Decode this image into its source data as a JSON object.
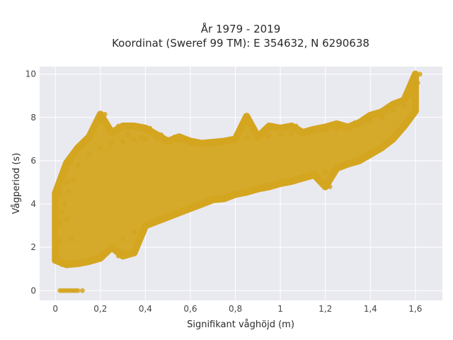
{
  "chart_data": {
    "type": "scatter",
    "title": "År 1979 - 2019",
    "subtitle": "Koordinat (Sweref 99 TM): E 354632, N 6290638",
    "xlabel": "Signifikant våghöjd (m)",
    "ylabel": "Vågperiod (s)",
    "xlim": [
      -0.07,
      1.72
    ],
    "ylim": [
      -0.45,
      10.35
    ],
    "x_ticks": [
      0,
      0.2,
      0.4,
      0.6,
      0.8,
      1.0,
      1.2,
      1.4,
      1.6
    ],
    "x_tick_labels": [
      "0",
      "0,2",
      "0,4",
      "0,6",
      "0,8",
      "1",
      "1,2",
      "1,4",
      "1,6"
    ],
    "y_ticks": [
      0,
      2,
      4,
      6,
      8,
      10
    ],
    "y_tick_labels": [
      "0",
      "2",
      "4",
      "6",
      "8",
      "10"
    ],
    "grid": true,
    "point_color": "#d4a51f",
    "background_color": "#e9e9f0",
    "series": [
      {
        "values": [
          {
            "x": 0.02,
            "y": 0.0
          },
          {
            "x": 0.03,
            "y": 0.0
          },
          {
            "x": 0.04,
            "y": 0.0
          },
          {
            "x": 0.05,
            "y": 0.0
          },
          {
            "x": 0.06,
            "y": 0.0
          },
          {
            "x": 0.07,
            "y": 0.0
          },
          {
            "x": 0.08,
            "y": 0.0
          },
          {
            "x": 0.09,
            "y": 0.0
          },
          {
            "x": 0.1,
            "y": 0.0
          },
          {
            "x": 0.12,
            "y": 0.0
          },
          {
            "x": 0.01,
            "y": 4.4
          },
          {
            "x": 0.02,
            "y": 4.5
          },
          {
            "x": 0.03,
            "y": 5.2
          },
          {
            "x": 0.05,
            "y": 5.6
          },
          {
            "x": 0.07,
            "y": 5.9
          },
          {
            "x": 0.1,
            "y": 6.6
          },
          {
            "x": 0.13,
            "y": 6.9
          },
          {
            "x": 0.15,
            "y": 7.1
          },
          {
            "x": 0.22,
            "y": 8.15
          },
          {
            "x": 0.24,
            "y": 7.3
          },
          {
            "x": 0.28,
            "y": 7.6
          },
          {
            "x": 0.32,
            "y": 7.2
          },
          {
            "x": 0.37,
            "y": 7.6
          },
          {
            "x": 0.42,
            "y": 7.5
          },
          {
            "x": 0.38,
            "y": 7.1
          },
          {
            "x": 0.47,
            "y": 7.2
          },
          {
            "x": 0.53,
            "y": 7.1
          },
          {
            "x": 0.58,
            "y": 6.9
          },
          {
            "x": 0.85,
            "y": 8.05
          },
          {
            "x": 0.95,
            "y": 7.6
          },
          {
            "x": 1.0,
            "y": 7.5
          },
          {
            "x": 1.07,
            "y": 7.6
          },
          {
            "x": 1.13,
            "y": 7.45
          },
          {
            "x": 1.2,
            "y": 7.55
          },
          {
            "x": 1.27,
            "y": 7.7
          },
          {
            "x": 1.33,
            "y": 7.75
          },
          {
            "x": 1.4,
            "y": 8.1
          },
          {
            "x": 1.45,
            "y": 8.25
          },
          {
            "x": 1.5,
            "y": 8.6
          },
          {
            "x": 1.55,
            "y": 8.8
          },
          {
            "x": 1.58,
            "y": 9.0
          },
          {
            "x": 1.6,
            "y": 9.3
          },
          {
            "x": 1.62,
            "y": 10.0
          },
          {
            "x": 1.61,
            "y": 9.6
          },
          {
            "x": 1.22,
            "y": 4.8
          },
          {
            "x": 0.3,
            "y": 1.8
          },
          {
            "x": 0.35,
            "y": 1.75
          },
          {
            "x": 0.28,
            "y": 1.6
          },
          {
            "x": 0.22,
            "y": 1.7
          },
          {
            "x": 0.02,
            "y": 1.4
          },
          {
            "x": 0.03,
            "y": 1.2
          },
          {
            "x": 0.01,
            "y": 1.6
          },
          {
            "x": 0.02,
            "y": 3.1
          },
          {
            "x": 0.02,
            "y": 2.3
          },
          {
            "x": 0.03,
            "y": 3.6
          },
          {
            "x": 0.04,
            "y": 4.0
          },
          {
            "x": 0.06,
            "y": 4.6
          },
          {
            "x": 0.08,
            "y": 5.1
          },
          {
            "x": 0.05,
            "y": 3.3
          },
          {
            "x": 0.07,
            "y": 2.4
          },
          {
            "x": 0.09,
            "y": 1.3
          },
          {
            "x": 0.12,
            "y": 1.25
          },
          {
            "x": 0.16,
            "y": 1.35
          },
          {
            "x": 0.2,
            "y": 1.5
          },
          {
            "x": 0.25,
            "y": 2.0
          },
          {
            "x": 0.3,
            "y": 2.4
          },
          {
            "x": 0.35,
            "y": 2.7
          },
          {
            "x": 0.4,
            "y": 3.0
          },
          {
            "x": 0.45,
            "y": 3.2
          },
          {
            "x": 0.5,
            "y": 3.4
          },
          {
            "x": 0.55,
            "y": 3.6
          },
          {
            "x": 0.6,
            "y": 3.8
          },
          {
            "x": 0.65,
            "y": 4.0
          },
          {
            "x": 0.7,
            "y": 4.2
          },
          {
            "x": 0.75,
            "y": 4.25
          },
          {
            "x": 0.8,
            "y": 4.45
          },
          {
            "x": 0.85,
            "y": 4.55
          },
          {
            "x": 0.9,
            "y": 4.7
          },
          {
            "x": 0.95,
            "y": 4.8
          },
          {
            "x": 1.0,
            "y": 4.95
          },
          {
            "x": 1.05,
            "y": 5.05
          },
          {
            "x": 1.1,
            "y": 5.2
          },
          {
            "x": 1.15,
            "y": 5.35
          },
          {
            "x": 1.2,
            "y": 5.5
          },
          {
            "x": 1.25,
            "y": 5.65
          },
          {
            "x": 1.3,
            "y": 5.85
          },
          {
            "x": 1.35,
            "y": 6.0
          },
          {
            "x": 1.4,
            "y": 6.3
          },
          {
            "x": 1.45,
            "y": 6.6
          },
          {
            "x": 1.5,
            "y": 7.0
          },
          {
            "x": 1.55,
            "y": 7.6
          },
          {
            "x": 1.6,
            "y": 8.3
          },
          {
            "x": 0.05,
            "y": 5.0
          },
          {
            "x": 0.1,
            "y": 5.8
          },
          {
            "x": 0.15,
            "y": 6.3
          },
          {
            "x": 0.2,
            "y": 6.6
          },
          {
            "x": 0.25,
            "y": 6.8
          },
          {
            "x": 0.3,
            "y": 6.9
          },
          {
            "x": 0.35,
            "y": 7.0
          },
          {
            "x": 0.4,
            "y": 7.0
          },
          {
            "x": 0.45,
            "y": 7.0
          },
          {
            "x": 0.5,
            "y": 6.9
          },
          {
            "x": 0.55,
            "y": 6.9
          },
          {
            "x": 0.6,
            "y": 6.8
          },
          {
            "x": 0.65,
            "y": 6.8
          },
          {
            "x": 0.7,
            "y": 6.85
          },
          {
            "x": 0.75,
            "y": 6.9
          },
          {
            "x": 0.8,
            "y": 7.0
          },
          {
            "x": 0.85,
            "y": 7.05
          },
          {
            "x": 0.9,
            "y": 7.1
          },
          {
            "x": 0.95,
            "y": 7.15
          },
          {
            "x": 1.0,
            "y": 7.2
          },
          {
            "x": 1.05,
            "y": 7.25
          },
          {
            "x": 1.1,
            "y": 7.3
          },
          {
            "x": 1.15,
            "y": 7.35
          },
          {
            "x": 1.2,
            "y": 7.4
          },
          {
            "x": 1.25,
            "y": 7.45
          },
          {
            "x": 1.3,
            "y": 7.55
          },
          {
            "x": 1.35,
            "y": 7.65
          },
          {
            "x": 1.4,
            "y": 7.8
          },
          {
            "x": 1.45,
            "y": 8.0
          },
          {
            "x": 1.5,
            "y": 8.3
          },
          {
            "x": 1.55,
            "y": 8.55
          },
          {
            "x": 1.6,
            "y": 8.9
          }
        ]
      }
    ]
  }
}
